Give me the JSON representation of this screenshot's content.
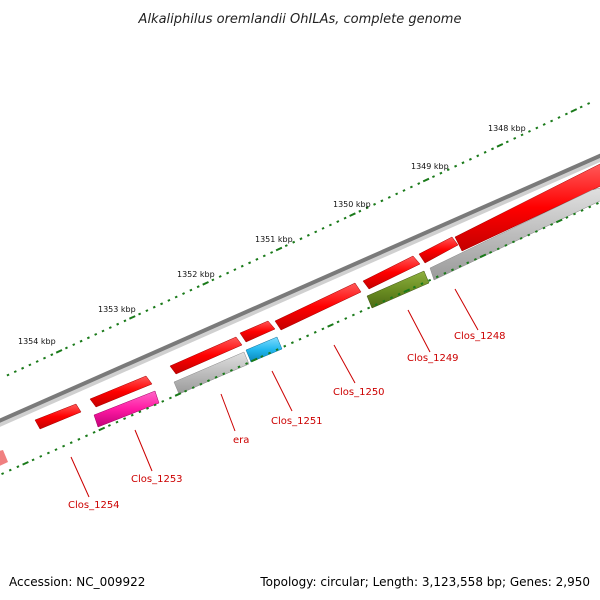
{
  "title": "Alkaliphilus oremlandii OhILAs, complete genome",
  "footer": {
    "accession": "Accession: NC_009922",
    "topology": "Topology: circular; Length: 3,123,558 bp; Genes: 2,950"
  },
  "ruler": {
    "unit": "kbp",
    "ticks": [
      {
        "kbp": 1348,
        "label": "1348 kbp"
      },
      {
        "kbp": 1349,
        "label": "1349 kbp"
      },
      {
        "kbp": 1350,
        "label": "1350 kbp"
      },
      {
        "kbp": 1351,
        "label": "1351 kbp"
      },
      {
        "kbp": 1352,
        "label": "1352 kbp"
      },
      {
        "kbp": 1353,
        "label": "1353 kbp"
      },
      {
        "kbp": 1354,
        "label": "1354 kbp"
      }
    ]
  },
  "colors": {
    "backbone": "#7a7a7a",
    "cds_forward": "#ff0000",
    "cds_reverse": "#ff0000",
    "gene_grey": "#bdbdbd",
    "gene_magenta": "#ff1aa3",
    "gene_cyan": "#22b8ef",
    "gene_olive": "#6b8e23",
    "tick_green": "#1a7a1a",
    "label_red": "#cc0000"
  },
  "genes": [
    {
      "name": "Clos_1248",
      "label": "Clos_1248",
      "color": "gene_grey"
    },
    {
      "name": "Clos_1249",
      "label": "Clos_1249",
      "color": "gene_olive"
    },
    {
      "name": "Clos_1250",
      "label": "Clos_1250",
      "color": "cds_forward"
    },
    {
      "name": "Clos_1251",
      "label": "Clos_1251",
      "color": "gene_cyan"
    },
    {
      "name": "era",
      "label": "era",
      "color": "gene_grey"
    },
    {
      "name": "Clos_1253",
      "label": "Clos_1253",
      "color": "gene_magenta"
    },
    {
      "name": "Clos_1254",
      "label": "Clos_1254",
      "color": "cds_forward"
    }
  ]
}
